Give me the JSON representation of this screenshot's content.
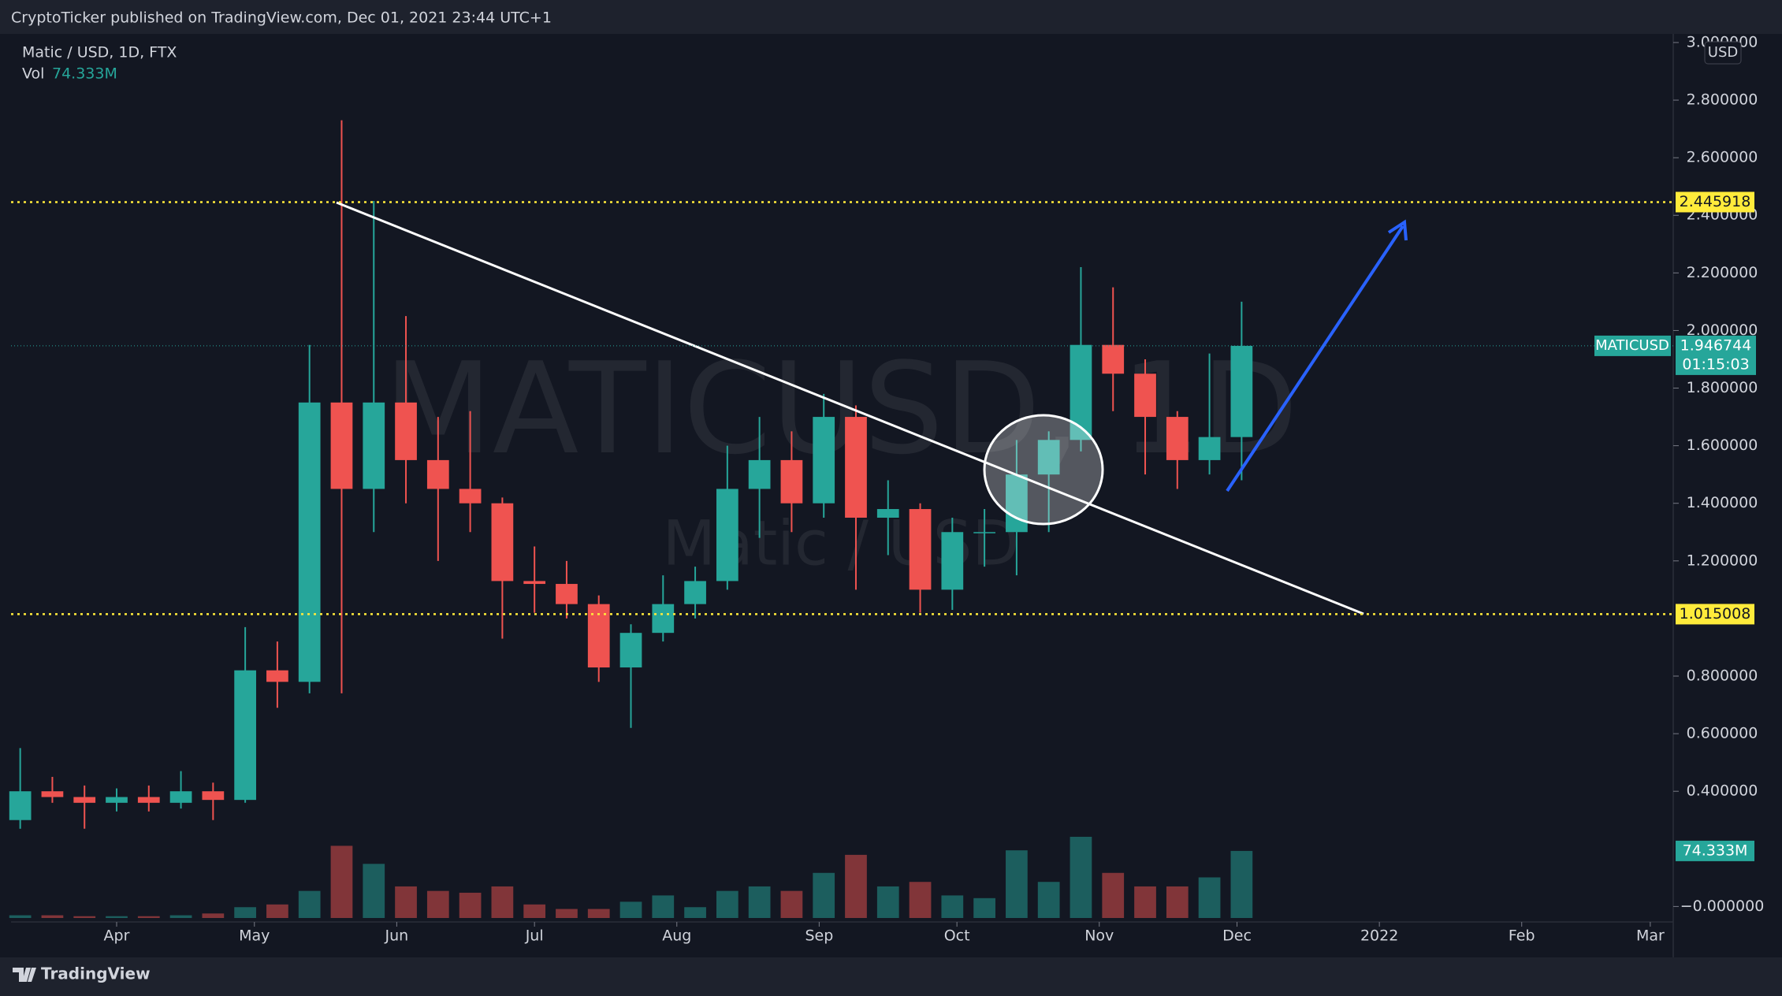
{
  "header": "CryptoTicker published on TradingView.com, Dec 01, 2021 23:44 UTC+1",
  "footer_brand": "TradingView",
  "chart_data": {
    "type": "candlestick",
    "symbol_line": "Matic / USD, 1D, FTX",
    "volume_name": "Vol",
    "volume_last_label": "74.333M",
    "watermark": "MATICUSD, 1D",
    "watermark_sub": "Matic / USD",
    "currency": "USD",
    "symbol": "MATICUSD",
    "countdown": "01:15:03",
    "up_color": "#26a69a",
    "down_color": "#ef5350",
    "level_color": "#ffeb3b",
    "levels": [
      2.445918,
      1.015008
    ],
    "xlim": [
      "2021-03-09",
      "2022-03-06"
    ],
    "xticks": [
      {
        "value": "2021-04-01",
        "label": "Apr"
      },
      {
        "value": "2021-05-01",
        "label": "May"
      },
      {
        "value": "2021-06-01",
        "label": "Jun"
      },
      {
        "value": "2021-07-01",
        "label": "Jul"
      },
      {
        "value": "2021-08-01",
        "label": "Aug"
      },
      {
        "value": "2021-09-01",
        "label": "Sep"
      },
      {
        "value": "2021-10-01",
        "label": "Oct"
      },
      {
        "value": "2021-11-01",
        "label": "Nov"
      },
      {
        "value": "2021-12-01",
        "label": "Dec"
      },
      {
        "value": "2022-01-01",
        "label": "2022"
      },
      {
        "value": "2022-02-01",
        "label": "Feb"
      },
      {
        "value": "2022-03-01",
        "label": "Mar"
      }
    ],
    "ylim": [
      -0.04,
      3.03
    ],
    "yticks": [
      {
        "value": 0,
        "label": "−0.000000"
      },
      {
        "value": 0.4,
        "label": "0.400000"
      },
      {
        "value": 0.6,
        "label": "0.600000"
      },
      {
        "value": 0.8,
        "label": "0.800000"
      },
      {
        "value": 1.2,
        "label": "1.200000"
      },
      {
        "value": 1.4,
        "label": "1.400000"
      },
      {
        "value": 1.6,
        "label": "1.600000"
      },
      {
        "value": 1.8,
        "label": "1.800000"
      },
      {
        "value": 2.0,
        "label": "2.000000"
      },
      {
        "value": 2.2,
        "label": "2.200000"
      },
      {
        "value": 2.4,
        "label": "2.400000"
      },
      {
        "value": 2.6,
        "label": "2.600000"
      },
      {
        "value": 2.8,
        "label": "2.800000"
      },
      {
        "value": 3.0,
        "label": "3.000000"
      }
    ],
    "y2lim": [
      0,
      980
    ],
    "grid": false,
    "x": [
      "2021-03-08",
      "2021-03-15",
      "2021-03-22",
      "2021-03-29",
      "2021-04-05",
      "2021-04-12",
      "2021-04-19",
      "2021-04-26",
      "2021-05-03",
      "2021-05-10",
      "2021-05-17",
      "2021-05-24",
      "2021-05-31",
      "2021-06-07",
      "2021-06-14",
      "2021-06-21",
      "2021-06-28",
      "2021-07-05",
      "2021-07-12",
      "2021-07-19",
      "2021-07-26",
      "2021-08-02",
      "2021-08-09",
      "2021-08-16",
      "2021-08-23",
      "2021-08-30",
      "2021-09-06",
      "2021-09-13",
      "2021-09-20",
      "2021-09-27",
      "2021-10-04",
      "2021-10-11",
      "2021-10-18",
      "2021-10-25",
      "2021-11-01",
      "2021-11-08",
      "2021-11-15",
      "2021-11-22",
      "2021-11-29"
    ],
    "open": [
      0.3,
      0.4,
      0.38,
      0.36,
      0.38,
      0.36,
      0.4,
      0.37,
      0.82,
      0.78,
      1.75,
      1.45,
      1.75,
      1.55,
      1.45,
      1.4,
      1.13,
      1.12,
      1.05,
      0.83,
      0.95,
      1.05,
      1.13,
      1.45,
      1.55,
      1.4,
      1.7,
      1.35,
      1.38,
      1.1,
      1.3,
      1.3,
      1.5,
      1.62,
      1.95,
      1.85,
      1.7,
      1.55,
      1.63
    ],
    "high": [
      0.55,
      0.45,
      0.42,
      0.41,
      0.42,
      0.47,
      0.43,
      0.97,
      0.92,
      1.95,
      2.73,
      2.45,
      2.05,
      1.7,
      1.72,
      1.42,
      1.25,
      1.2,
      1.08,
      0.98,
      1.15,
      1.18,
      1.6,
      1.7,
      1.65,
      1.78,
      1.74,
      1.48,
      1.4,
      1.35,
      1.38,
      1.62,
      1.65,
      2.22,
      2.15,
      1.9,
      1.72,
      1.92,
      2.1
    ],
    "low": [
      0.27,
      0.36,
      0.27,
      0.33,
      0.33,
      0.34,
      0.3,
      0.36,
      0.69,
      0.74,
      0.74,
      1.3,
      1.4,
      1.2,
      1.3,
      0.93,
      1.02,
      1.0,
      0.78,
      0.62,
      0.92,
      1.0,
      1.1,
      1.28,
      1.3,
      1.35,
      1.1,
      1.22,
      1.02,
      1.03,
      1.18,
      1.15,
      1.3,
      1.58,
      1.72,
      1.5,
      1.45,
      1.5,
      1.48
    ],
    "close": [
      0.4,
      0.38,
      0.36,
      0.38,
      0.36,
      0.4,
      0.37,
      0.82,
      0.78,
      1.75,
      1.45,
      1.75,
      1.55,
      1.45,
      1.4,
      1.13,
      1.12,
      1.05,
      0.83,
      0.95,
      1.05,
      1.13,
      1.45,
      1.55,
      1.4,
      1.7,
      1.35,
      1.38,
      1.1,
      1.3,
      1.3,
      1.5,
      1.62,
      1.95,
      1.85,
      1.7,
      1.55,
      1.63,
      1.946744
    ],
    "volume": [
      3,
      3,
      2,
      2,
      2,
      3,
      5,
      12,
      15,
      30,
      80,
      60,
      35,
      30,
      28,
      35,
      15,
      10,
      10,
      18,
      25,
      12,
      30,
      35,
      30,
      50,
      70,
      35,
      40,
      25,
      22,
      75,
      40,
      90,
      50,
      35,
      35,
      45,
      74.333
    ]
  }
}
